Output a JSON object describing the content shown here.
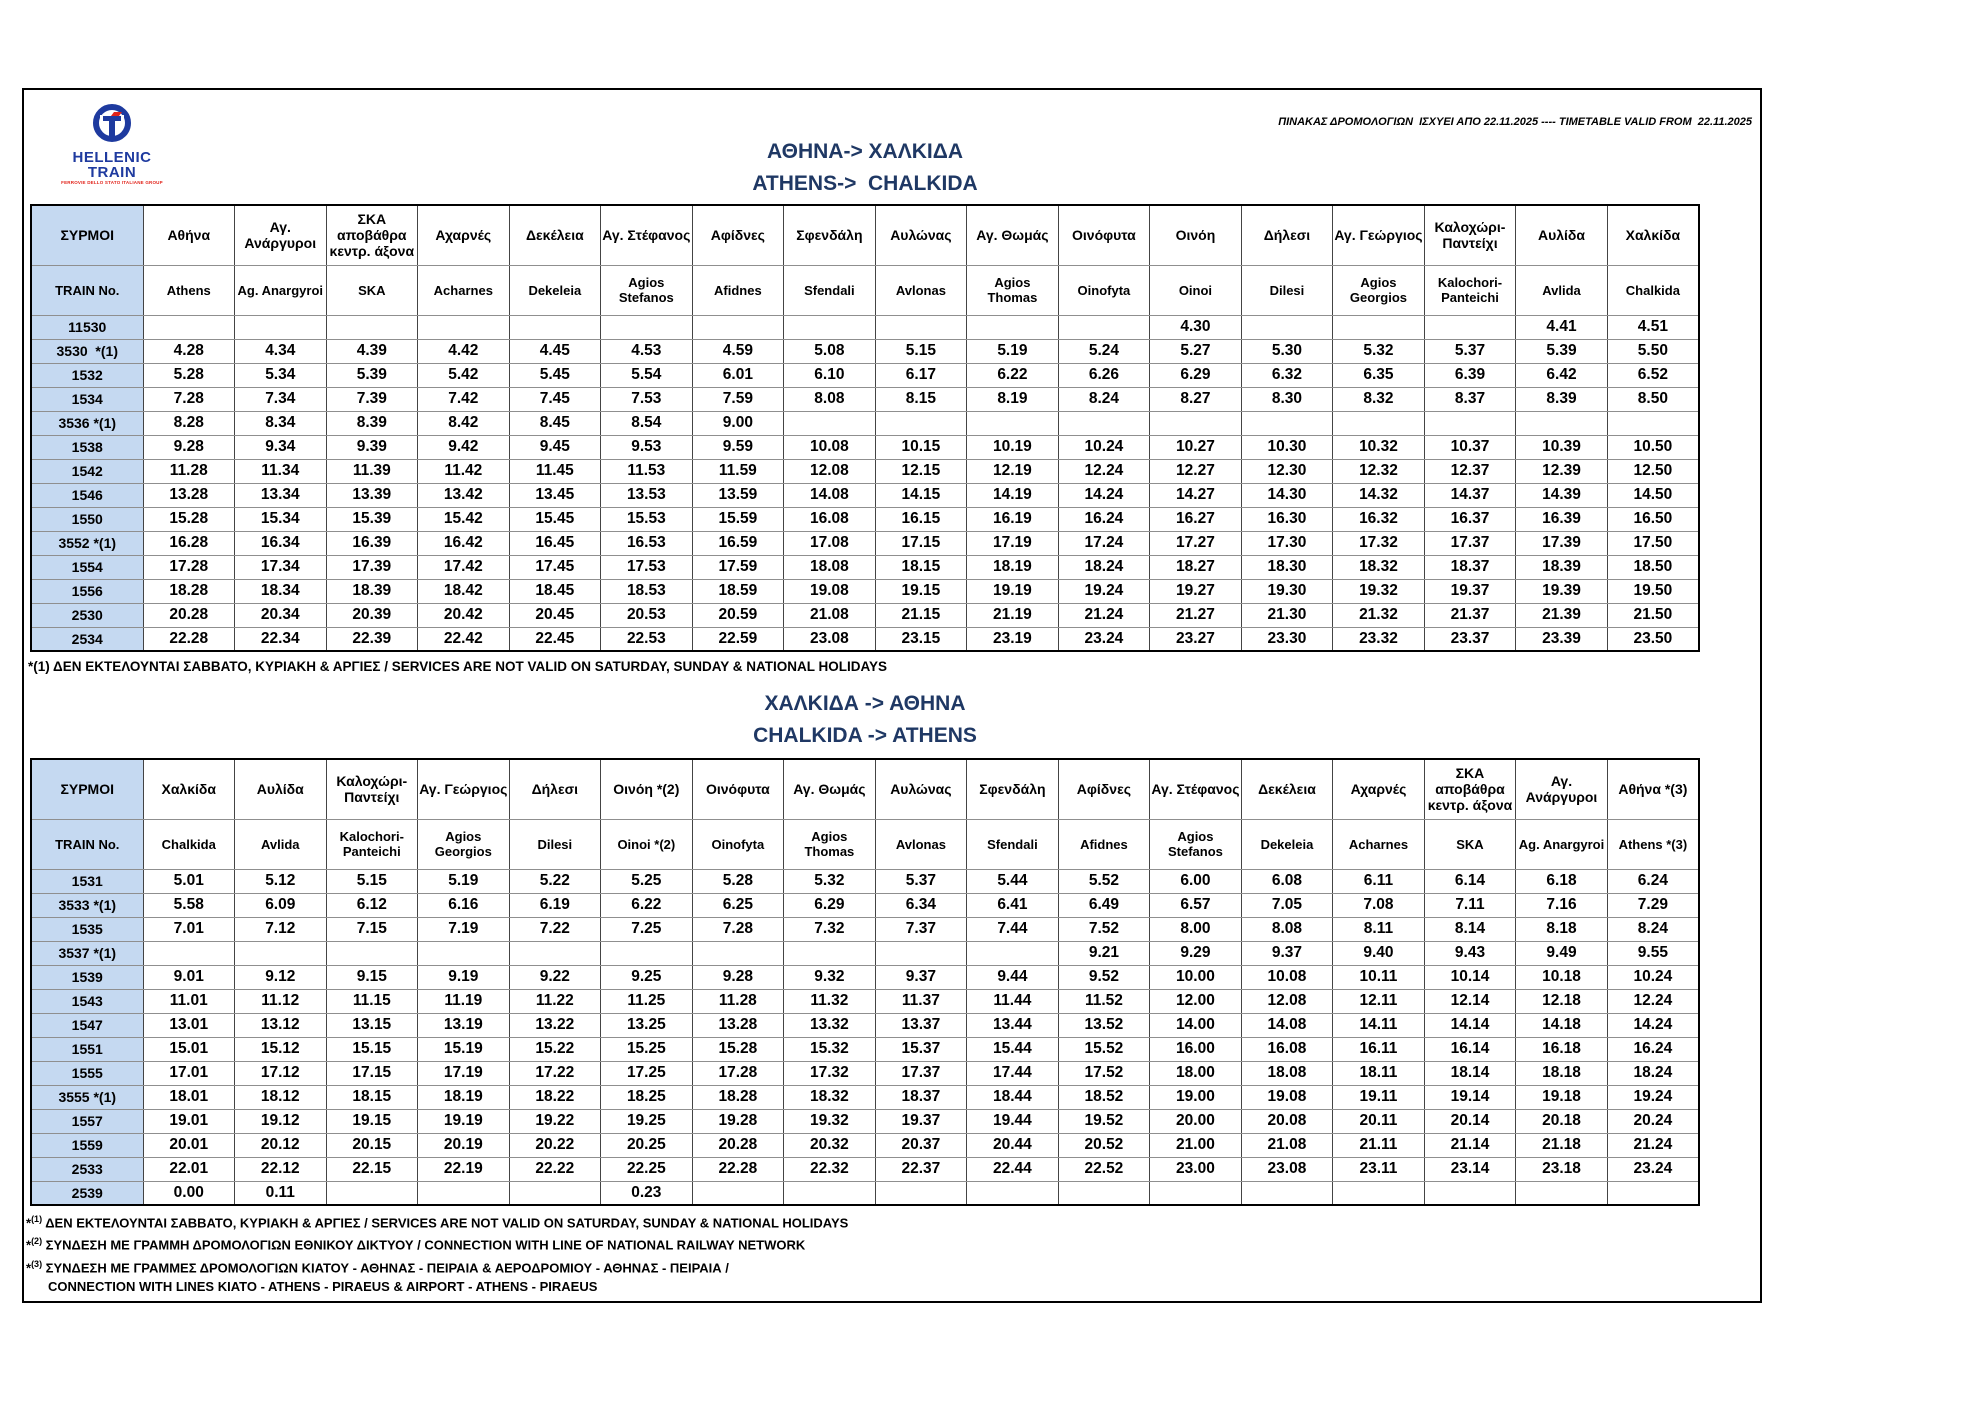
{
  "colors": {
    "accent_navy": "#1f3864",
    "header_fill": "#c5d9f1",
    "logo_blue": "#1e3a9f",
    "logo_red": "#e2231a"
  },
  "header": {
    "logo_line1": "HELLENIC",
    "logo_line2": "TRAIN",
    "logo_tagline": "FERROVIE DELLO STATO ITALIANE GROUP",
    "validity_note": "ΠΙΝΑΚΑΣ ΔΡΟΜΟΛΟΓΙΩΝ  ΙΣΧΥΕΙ ΑΠΟ 22.11.2025 ---- TIMETABLE VALID FROM  22.11.2025"
  },
  "table1": {
    "title_el": "ΑΘΗΝΑ-> ΧΑΛΚΙΔΑ",
    "title_en": "ATHENS->  CHALKIDA",
    "label_el": "ΣΥΡΜΟΙ",
    "label_en": "TRAIN No.",
    "stations_el": [
      "Αθήνα",
      "Αγ. Ανάργυροι",
      "ΣΚΑ αποβάθρα κεντρ. άξονα",
      "Αχαρνές",
      "Δεκέλεια",
      "Αγ. Στέφανος",
      "Αφίδνες",
      "Σφενδάλη",
      "Αυλώνας",
      "Αγ. Θωμάς",
      "Οινόφυτα",
      "Οινόη",
      "Δήλεσι",
      "Αγ. Γεώργιος",
      "Καλοχώρι-Παντείχι",
      "Αυλίδα",
      "Χαλκίδα"
    ],
    "stations_en": [
      "Athens",
      "Ag. Anargyroi",
      "SKA",
      "Acharnes",
      "Dekeleia",
      "Agios Stefanos",
      "Afidnes",
      "Sfendali",
      "Avlonas",
      "Agios Thomas",
      "Oinofyta",
      "Oinoi",
      "Dilesi",
      "Agios Georgios",
      "Kalochori-Panteichi",
      "Avlida",
      "Chalkida"
    ],
    "rows": [
      {
        "train": "11530",
        "times": [
          "",
          "",
          "",
          "",
          "",
          "",
          "",
          "",
          "",
          "",
          "",
          "4.30",
          "",
          "",
          "",
          "4.41",
          "4.51"
        ]
      },
      {
        "train": "3530  *(1)",
        "times": [
          "4.28",
          "4.34",
          "4.39",
          "4.42",
          "4.45",
          "4.53",
          "4.59",
          "5.08",
          "5.15",
          "5.19",
          "5.24",
          "5.27",
          "5.30",
          "5.32",
          "5.37",
          "5.39",
          "5.50"
        ]
      },
      {
        "train": "1532",
        "times": [
          "5.28",
          "5.34",
          "5.39",
          "5.42",
          "5.45",
          "5.54",
          "6.01",
          "6.10",
          "6.17",
          "6.22",
          "6.26",
          "6.29",
          "6.32",
          "6.35",
          "6.39",
          "6.42",
          "6.52"
        ]
      },
      {
        "train": "1534",
        "times": [
          "7.28",
          "7.34",
          "7.39",
          "7.42",
          "7.45",
          "7.53",
          "7.59",
          "8.08",
          "8.15",
          "8.19",
          "8.24",
          "8.27",
          "8.30",
          "8.32",
          "8.37",
          "8.39",
          "8.50"
        ]
      },
      {
        "train": "3536 *(1)",
        "times": [
          "8.28",
          "8.34",
          "8.39",
          "8.42",
          "8.45",
          "8.54",
          "9.00",
          "",
          "",
          "",
          "",
          "",
          "",
          "",
          "",
          "",
          ""
        ]
      },
      {
        "train": "1538",
        "times": [
          "9.28",
          "9.34",
          "9.39",
          "9.42",
          "9.45",
          "9.53",
          "9.59",
          "10.08",
          "10.15",
          "10.19",
          "10.24",
          "10.27",
          "10.30",
          "10.32",
          "10.37",
          "10.39",
          "10.50"
        ]
      },
      {
        "train": "1542",
        "times": [
          "11.28",
          "11.34",
          "11.39",
          "11.42",
          "11.45",
          "11.53",
          "11.59",
          "12.08",
          "12.15",
          "12.19",
          "12.24",
          "12.27",
          "12.30",
          "12.32",
          "12.37",
          "12.39",
          "12.50"
        ]
      },
      {
        "train": "1546",
        "times": [
          "13.28",
          "13.34",
          "13.39",
          "13.42",
          "13.45",
          "13.53",
          "13.59",
          "14.08",
          "14.15",
          "14.19",
          "14.24",
          "14.27",
          "14.30",
          "14.32",
          "14.37",
          "14.39",
          "14.50"
        ]
      },
      {
        "train": "1550",
        "times": [
          "15.28",
          "15.34",
          "15.39",
          "15.42",
          "15.45",
          "15.53",
          "15.59",
          "16.08",
          "16.15",
          "16.19",
          "16.24",
          "16.27",
          "16.30",
          "16.32",
          "16.37",
          "16.39",
          "16.50"
        ]
      },
      {
        "train": "3552 *(1)",
        "times": [
          "16.28",
          "16.34",
          "16.39",
          "16.42",
          "16.45",
          "16.53",
          "16.59",
          "17.08",
          "17.15",
          "17.19",
          "17.24",
          "17.27",
          "17.30",
          "17.32",
          "17.37",
          "17.39",
          "17.50"
        ]
      },
      {
        "train": "1554",
        "times": [
          "17.28",
          "17.34",
          "17.39",
          "17.42",
          "17.45",
          "17.53",
          "17.59",
          "18.08",
          "18.15",
          "18.19",
          "18.24",
          "18.27",
          "18.30",
          "18.32",
          "18.37",
          "18.39",
          "18.50"
        ]
      },
      {
        "train": "1556",
        "times": [
          "18.28",
          "18.34",
          "18.39",
          "18.42",
          "18.45",
          "18.53",
          "18.59",
          "19.08",
          "19.15",
          "19.19",
          "19.24",
          "19.27",
          "19.30",
          "19.32",
          "19.37",
          "19.39",
          "19.50"
        ]
      },
      {
        "train": "2530",
        "times": [
          "20.28",
          "20.34",
          "20.39",
          "20.42",
          "20.45",
          "20.53",
          "20.59",
          "21.08",
          "21.15",
          "21.19",
          "21.24",
          "21.27",
          "21.30",
          "21.32",
          "21.37",
          "21.39",
          "21.50"
        ]
      },
      {
        "train": "2534",
        "times": [
          "22.28",
          "22.34",
          "22.39",
          "22.42",
          "22.45",
          "22.53",
          "22.59",
          "23.08",
          "23.15",
          "23.19",
          "23.24",
          "23.27",
          "23.30",
          "23.32",
          "23.37",
          "23.39",
          "23.50"
        ]
      }
    ],
    "footnote": "*(1) ΔΕΝ ΕΚΤΕΛΟΥΝΤΑΙ ΣΑΒΒΑΤΟ, ΚΥΡΙΑΚΗ & ΑΡΓΙΕΣ / SERVICES ARE NOT VALID ON SATURDAY, SUNDAY & NATIONAL HOLIDAYS"
  },
  "table2": {
    "title_el": "ΧΑΛΚΙΔΑ -> ΑΘΗΝΑ",
    "title_en": "CHALKIDA -> ATHENS",
    "label_el": "ΣΥΡΜΟΙ",
    "label_en": "TRAIN No.",
    "stations_el": [
      "Χαλκίδα",
      "Αυλίδα",
      "Καλοχώρι-Παντείχι",
      "Αγ. Γεώργιος",
      "Δήλεσι",
      "Οινόη *(2)",
      "Οινόφυτα",
      "Αγ. Θωμάς",
      "Αυλώνας",
      "Σφενδάλη",
      "Αφίδνες",
      "Αγ. Στέφανος",
      "Δεκέλεια",
      "Αχαρνές",
      "ΣΚΑ αποβάθρα κεντρ. άξονα",
      "Αγ. Ανάργυροι",
      "Αθήνα *(3)"
    ],
    "stations_en": [
      "Chalkida",
      "Avlida",
      "Kalochori-Panteichi",
      "Agios Georgios",
      "Dilesi",
      "Oinoi *(2)",
      "Oinofyta",
      "Agios Thomas",
      "Avlonas",
      "Sfendali",
      "Afidnes",
      "Agios Stefanos",
      "Dekeleia",
      "Acharnes",
      "SKA",
      "Ag. Anargyroi",
      "Athens *(3)"
    ],
    "rows": [
      {
        "train": "1531",
        "times": [
          "5.01",
          "5.12",
          "5.15",
          "5.19",
          "5.22",
          "5.25",
          "5.28",
          "5.32",
          "5.37",
          "5.44",
          "5.52",
          "6.00",
          "6.08",
          "6.11",
          "6.14",
          "6.18",
          "6.24"
        ]
      },
      {
        "train": "3533 *(1)",
        "times": [
          "5.58",
          "6.09",
          "6.12",
          "6.16",
          "6.19",
          "6.22",
          "6.25",
          "6.29",
          "6.34",
          "6.41",
          "6.49",
          "6.57",
          "7.05",
          "7.08",
          "7.11",
          "7.16",
          "7.29"
        ]
      },
      {
        "train": "1535",
        "times": [
          "7.01",
          "7.12",
          "7.15",
          "7.19",
          "7.22",
          "7.25",
          "7.28",
          "7.32",
          "7.37",
          "7.44",
          "7.52",
          "8.00",
          "8.08",
          "8.11",
          "8.14",
          "8.18",
          "8.24"
        ]
      },
      {
        "train": "3537 *(1)",
        "times": [
          "",
          "",
          "",
          "",
          "",
          "",
          "",
          "",
          "",
          "",
          "9.21",
          "9.29",
          "9.37",
          "9.40",
          "9.43",
          "9.49",
          "9.55"
        ]
      },
      {
        "train": "1539",
        "times": [
          "9.01",
          "9.12",
          "9.15",
          "9.19",
          "9.22",
          "9.25",
          "9.28",
          "9.32",
          "9.37",
          "9.44",
          "9.52",
          "10.00",
          "10.08",
          "10.11",
          "10.14",
          "10.18",
          "10.24"
        ]
      },
      {
        "train": "1543",
        "times": [
          "11.01",
          "11.12",
          "11.15",
          "11.19",
          "11.22",
          "11.25",
          "11.28",
          "11.32",
          "11.37",
          "11.44",
          "11.52",
          "12.00",
          "12.08",
          "12.11",
          "12.14",
          "12.18",
          "12.24"
        ]
      },
      {
        "train": "1547",
        "times": [
          "13.01",
          "13.12",
          "13.15",
          "13.19",
          "13.22",
          "13.25",
          "13.28",
          "13.32",
          "13.37",
          "13.44",
          "13.52",
          "14.00",
          "14.08",
          "14.11",
          "14.14",
          "14.18",
          "14.24"
        ]
      },
      {
        "train": "1551",
        "times": [
          "15.01",
          "15.12",
          "15.15",
          "15.19",
          "15.22",
          "15.25",
          "15.28",
          "15.32",
          "15.37",
          "15.44",
          "15.52",
          "16.00",
          "16.08",
          "16.11",
          "16.14",
          "16.18",
          "16.24"
        ]
      },
      {
        "train": "1555",
        "times": [
          "17.01",
          "17.12",
          "17.15",
          "17.19",
          "17.22",
          "17.25",
          "17.28",
          "17.32",
          "17.37",
          "17.44",
          "17.52",
          "18.00",
          "18.08",
          "18.11",
          "18.14",
          "18.18",
          "18.24"
        ]
      },
      {
        "train": "3555 *(1)",
        "times": [
          "18.01",
          "18.12",
          "18.15",
          "18.19",
          "18.22",
          "18.25",
          "18.28",
          "18.32",
          "18.37",
          "18.44",
          "18.52",
          "19.00",
          "19.08",
          "19.11",
          "19.14",
          "19.18",
          "19.24"
        ]
      },
      {
        "train": "1557",
        "times": [
          "19.01",
          "19.12",
          "19.15",
          "19.19",
          "19.22",
          "19.25",
          "19.28",
          "19.32",
          "19.37",
          "19.44",
          "19.52",
          "20.00",
          "20.08",
          "20.11",
          "20.14",
          "20.18",
          "20.24"
        ]
      },
      {
        "train": "1559",
        "times": [
          "20.01",
          "20.12",
          "20.15",
          "20.19",
          "20.22",
          "20.25",
          "20.28",
          "20.32",
          "20.37",
          "20.44",
          "20.52",
          "21.00",
          "21.08",
          "21.11",
          "21.14",
          "21.18",
          "21.24"
        ]
      },
      {
        "train": "2533",
        "times": [
          "22.01",
          "22.12",
          "22.15",
          "22.19",
          "22.22",
          "22.25",
          "22.28",
          "22.32",
          "22.37",
          "22.44",
          "22.52",
          "23.00",
          "23.08",
          "23.11",
          "23.14",
          "23.18",
          "23.24"
        ]
      },
      {
        "train": "2539",
        "times": [
          "0.00",
          "0.11",
          "",
          "",
          "",
          "0.23",
          "",
          "",
          "",
          "",
          "",
          "",
          "",
          "",
          "",
          "",
          ""
        ]
      }
    ]
  },
  "footnotes": [
    {
      "sup": "(1)",
      "text": "ΔΕΝ ΕΚΤΕΛΟΥΝΤΑΙ ΣΑΒΒΑΤΟ, ΚΥΡΙΑΚΗ & ΑΡΓΙΕΣ / SERVICES ARE NOT VALID ON SATURDAY, SUNDAY & NATIONAL HOLIDAYS"
    },
    {
      "sup": "(2)",
      "text": "ΣΥΝΔΕΣΗ ΜΕ ΓΡΑΜΜΗ ΔΡΟΜΟΛΟΓΙΩΝ ΕΘΝΙΚΟΥ ΔΙΚΤΥΟΥ / CONNECTION WITH LINE OF NATIONAL RAILWAY NETWORK"
    },
    {
      "sup": "(3)",
      "text": "ΣΥΝΔΕΣΗ ΜΕ ΓΡΑΜΜΕΣ ΔΡΟΜΟΛΟΓΙΩΝ ΚΙΑΤΟΥ - ΑΘΗΝΑΣ - ΠΕΙΡΑΙΑ & ΑΕΡΟΔΡΟΜΙΟΥ - ΑΘΗΝΑΣ - ΠΕΙΡΑΙΑ /",
      "text2": "CONNECTION WITH LINES KIATO - ATHENS - PIRAEUS & AIRPORT - ATHENS -  PIRAEUS"
    }
  ]
}
